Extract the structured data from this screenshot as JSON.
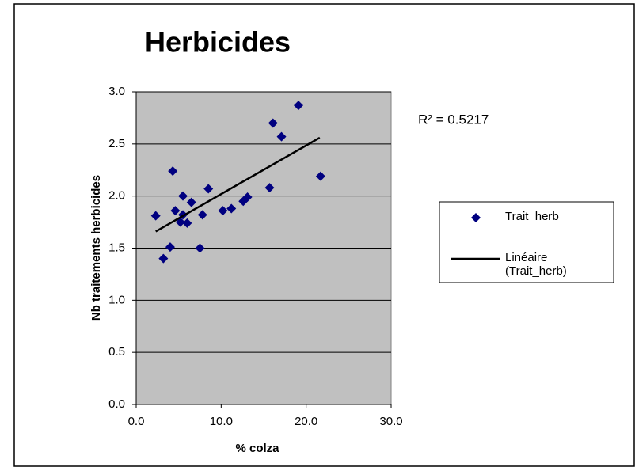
{
  "chart_data": {
    "type": "scatter",
    "title": "Herbicides",
    "xlabel": "% colza",
    "ylabel": "Nb traitements herbicides",
    "annotation": "R² = 0.5217",
    "series": [
      {
        "name": "Trait_herb",
        "type": "scatter",
        "color": "#000080",
        "x": [
          2.3,
          3.2,
          4.3,
          4.0,
          4.6,
          5.5,
          5.2,
          5.5,
          6.0,
          6.5,
          7.5,
          7.8,
          8.5,
          10.2,
          11.2,
          12.6,
          13.1,
          15.7,
          16.1,
          17.1,
          19.1,
          21.7
        ],
        "values": [
          1.81,
          1.4,
          2.24,
          1.51,
          1.86,
          2.0,
          1.75,
          1.82,
          1.74,
          1.94,
          1.5,
          1.82,
          2.07,
          1.86,
          1.88,
          1.95,
          1.99,
          2.08,
          2.7,
          2.57,
          2.87,
          2.19
        ]
      },
      {
        "name": "Linéaire (Trait_herb)",
        "type": "line",
        "color": "#000000",
        "x": [
          2.3,
          21.6
        ],
        "values": [
          1.66,
          2.56
        ]
      }
    ],
    "xlim": [
      0,
      30
    ],
    "ylim": [
      0,
      3
    ],
    "xticks": [
      {
        "value": 0,
        "label": "0.0"
      },
      {
        "value": 10,
        "label": "10.0"
      },
      {
        "value": 20,
        "label": "20.0"
      },
      {
        "value": 30,
        "label": "30.0"
      }
    ],
    "yticks": [
      {
        "value": 0,
        "label": "0.0"
      },
      0.5,
      {
        "value": 1,
        "label": "1.0"
      },
      1.5,
      {
        "value": 2,
        "label": "2.0"
      },
      2.5,
      {
        "value": 3,
        "label": "3.0"
      }
    ],
    "grid": true,
    "legend": "right"
  }
}
